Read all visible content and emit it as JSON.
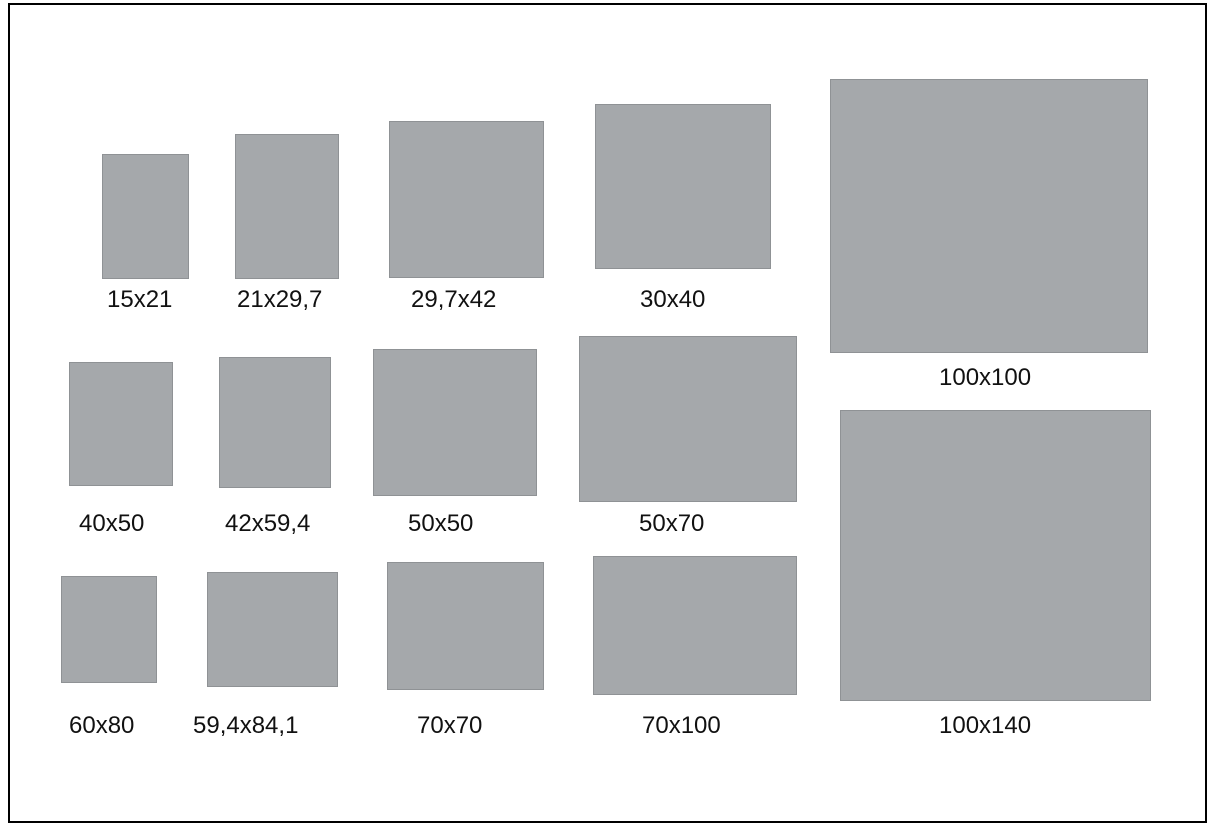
{
  "colors": {
    "sheet_fill": "#a5a8ab",
    "sheet_edge": "#8f9295",
    "border": "#000000",
    "text": "#111111"
  },
  "formats": [
    {
      "label": "15x21"
    },
    {
      "label": "21x29,7"
    },
    {
      "label": "29,7x42"
    },
    {
      "label": "30x40"
    },
    {
      "label": "100x100"
    },
    {
      "label": "40x50"
    },
    {
      "label": "42x59,4"
    },
    {
      "label": "50x50"
    },
    {
      "label": "50x70"
    },
    {
      "label": "100x140"
    },
    {
      "label": "60x80"
    },
    {
      "label": "59,4x84,1"
    },
    {
      "label": "70x70"
    },
    {
      "label": "70x100"
    }
  ]
}
